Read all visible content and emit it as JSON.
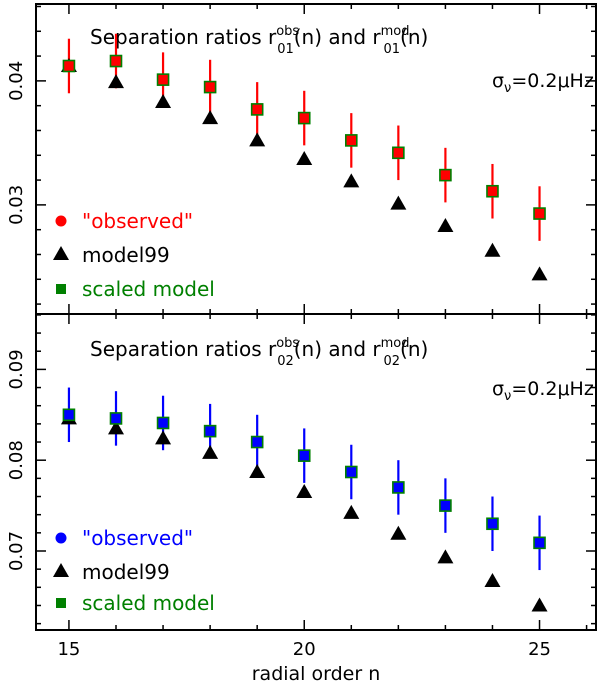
{
  "chart_data": [
    {
      "type": "scatter",
      "title_parts": [
        "Separation ratios r",
        "obs",
        "01",
        "(n) and r",
        "mod",
        "01",
        "(n)"
      ],
      "annotation": {
        "sigma": "σ",
        "nu": "ν",
        "value": "=0.2μHz"
      },
      "xlabel": "radial order n",
      "ylabel": "",
      "xlim": [
        14.3,
        26.2
      ],
      "ylim": [
        0.0212,
        0.0462
      ],
      "xticks": [
        15,
        20,
        25
      ],
      "yticks": [
        0.03,
        0.04
      ],
      "ytick_labels": [
        "0.03",
        "0.04"
      ],
      "x": [
        15,
        16,
        17,
        18,
        19,
        20,
        21,
        22,
        23,
        24,
        25
      ],
      "series": [
        {
          "name": "\"observed\"",
          "color": "#ff0000",
          "marker": "circle",
          "values": [
            0.0412,
            0.0416,
            0.0401,
            0.0395,
            0.0377,
            0.037,
            0.0352,
            0.0342,
            0.0324,
            0.0311,
            0.0293
          ],
          "errors": [
            0.0022,
            0.0022,
            0.0022,
            0.0022,
            0.0022,
            0.0022,
            0.0022,
            0.0022,
            0.0022,
            0.0022,
            0.0022
          ]
        },
        {
          "name": "model99",
          "color": "#000000",
          "marker": "triangle",
          "values": [
            0.0412,
            0.0399,
            0.0383,
            0.037,
            0.0352,
            0.0337,
            0.0319,
            0.0301,
            0.0283,
            0.0263,
            0.0244
          ]
        },
        {
          "name": "scaled model",
          "color": "#008000",
          "marker": "square",
          "values": [
            0.0412,
            0.0416,
            0.0401,
            0.0395,
            0.0377,
            0.037,
            0.0352,
            0.0342,
            0.0324,
            0.0311,
            0.0293
          ]
        }
      ]
    },
    {
      "type": "scatter",
      "title_parts": [
        "Separation ratios r",
        "obs",
        "02",
        "(n) and r",
        "mod",
        "02",
        "(n)"
      ],
      "annotation": {
        "sigma": "σ",
        "nu": "ν",
        "value": "=0.2μHz"
      },
      "xlabel": "radial order n",
      "ylabel": "",
      "xlim": [
        14.3,
        26.2
      ],
      "ylim": [
        0.0613,
        0.0961
      ],
      "xticks": [
        15,
        20,
        25
      ],
      "yticks": [
        0.07,
        0.08,
        0.09
      ],
      "ytick_labels": [
        "0.07",
        "0.08",
        "0.09"
      ],
      "x": [
        15,
        16,
        17,
        18,
        19,
        20,
        21,
        22,
        23,
        24,
        25
      ],
      "series": [
        {
          "name": "\"observed\"",
          "color": "#0000ff",
          "marker": "circle",
          "values": [
            0.085,
            0.0846,
            0.0841,
            0.0832,
            0.082,
            0.0805,
            0.0787,
            0.077,
            0.075,
            0.073,
            0.0709
          ],
          "errors": [
            0.003,
            0.003,
            0.003,
            0.003,
            0.003,
            0.003,
            0.003,
            0.003,
            0.003,
            0.003,
            0.003
          ]
        },
        {
          "name": "model99",
          "color": "#000000",
          "marker": "triangle",
          "values": [
            0.0846,
            0.0835,
            0.0824,
            0.0808,
            0.0787,
            0.0765,
            0.0742,
            0.0719,
            0.0693,
            0.0667,
            0.064
          ]
        },
        {
          "name": "scaled model",
          "color": "#008000",
          "marker": "square",
          "values": [
            0.085,
            0.0846,
            0.0841,
            0.0832,
            0.082,
            0.0805,
            0.0787,
            0.077,
            0.075,
            0.073,
            0.0709
          ]
        }
      ]
    }
  ]
}
